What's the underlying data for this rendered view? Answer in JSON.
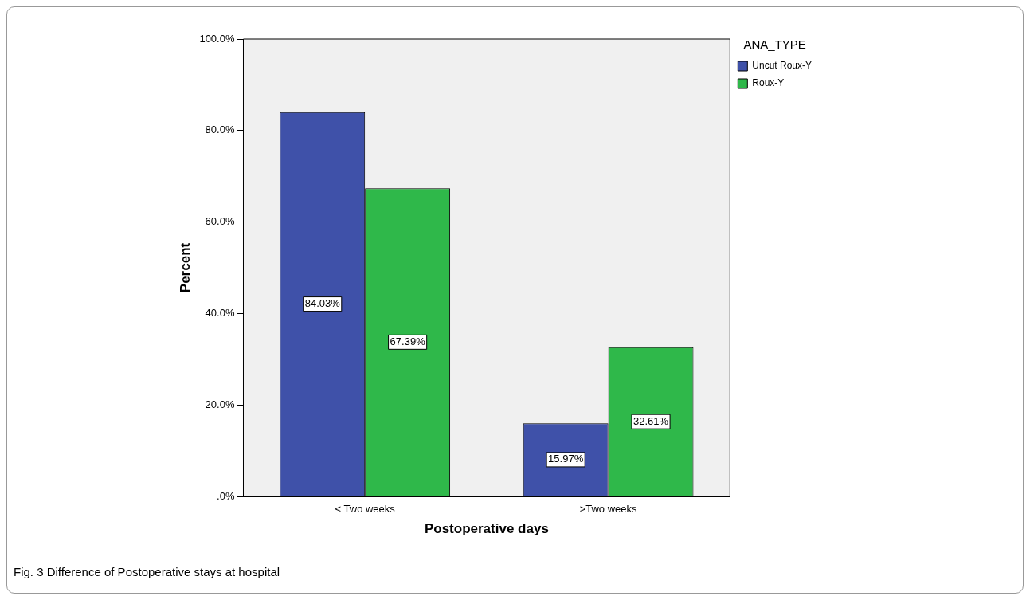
{
  "chart_data": {
    "type": "bar",
    "xlabel": "Postoperative days",
    "ylabel": "Percent",
    "legend_title": "ANA_TYPE",
    "legend": "top right",
    "categories": [
      "< Two weeks",
      ">Two weeks"
    ],
    "series": [
      {
        "name": "Uncut Roux-Y",
        "color": "#3f51a9",
        "values": [
          84.03,
          15.97
        ],
        "value_labels": [
          "84.03%",
          "15.97%"
        ]
      },
      {
        "name": "Roux-Y",
        "color": "#2fb84a",
        "values": [
          67.39,
          32.61
        ],
        "value_labels": [
          "67.39%",
          "32.61%"
        ]
      }
    ],
    "ylim": [
      0,
      100
    ],
    "yticks": [
      {
        "value": 0,
        "label": ".0%"
      },
      {
        "value": 20,
        "label": "20.0%"
      },
      {
        "value": 40,
        "label": "40.0%"
      },
      {
        "value": 60,
        "label": "60.0%"
      },
      {
        "value": 80,
        "label": "80.0%"
      },
      {
        "value": 100,
        "label": "100.0%"
      }
    ],
    "grid": false,
    "annotations": [
      "Fig. 3 Difference of Postoperative stays at hospital"
    ]
  }
}
